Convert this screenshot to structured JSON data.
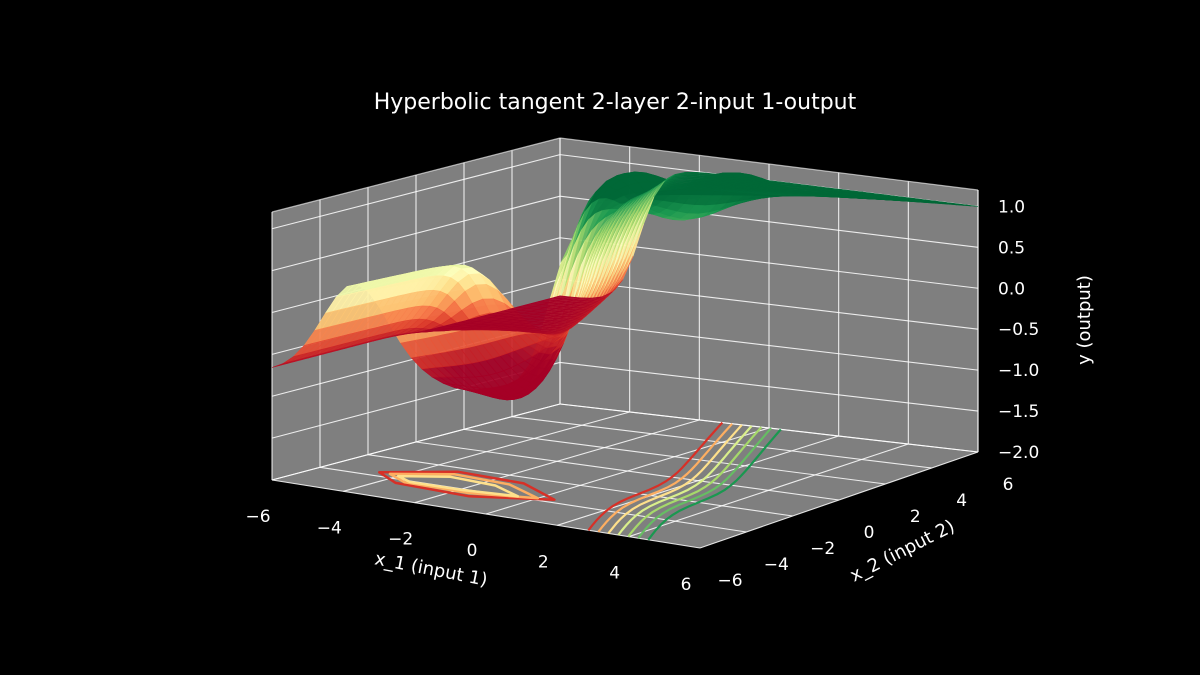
{
  "chart_data": {
    "type": "surface3d",
    "title": "Hyperbolic tangent 2-layer 2-input 1-output",
    "xlabel": "x_1 (input 1)",
    "ylabel": "x_2 (input 2)",
    "zlabel": "y (output)",
    "xlim": [
      -6,
      6
    ],
    "ylim": [
      -6,
      6
    ],
    "zlim": [
      -2.0,
      1.2
    ],
    "x_ticks": [
      "−6",
      "−4",
      "−2",
      "0",
      "2",
      "4",
      "6"
    ],
    "y_ticks": [
      "−6",
      "−4",
      "−2",
      "0",
      "2",
      "4",
      "6"
    ],
    "z_ticks": [
      "−2.0",
      "−1.5",
      "−1.0",
      "−0.5",
      "0.0",
      "0.5",
      "1.0"
    ],
    "colormap": "RdYlGn",
    "background": "#000000",
    "pane_color": "#7f7f7f",
    "grid": true,
    "contour_projection": "bottom",
    "surface": {
      "low_plateau": -0.7,
      "high_plateau": 1.0,
      "ridge_peak_x1": -3.7,
      "ridge_peak_value": 0.3,
      "ridge_x2_range": [
        -6,
        0
      ]
    }
  }
}
